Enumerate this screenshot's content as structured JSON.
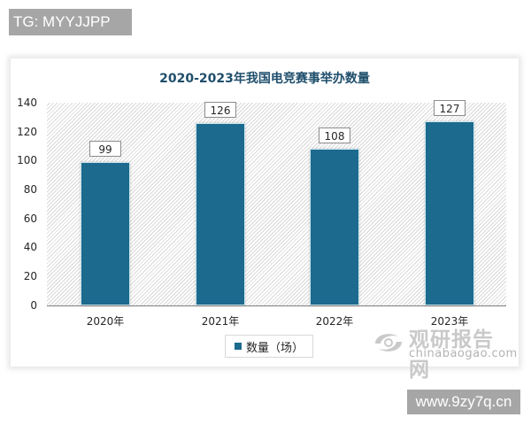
{
  "watermarks": {
    "top_left": "TG: MYYJJPP",
    "bottom_right": "www.9zy7q.cn"
  },
  "logo": {
    "name_cn": "观研报告网",
    "domain": "chinabaogao.com"
  },
  "chart_data": {
    "type": "bar",
    "title": "2020-2023年我国电竞赛事举办数量",
    "categories": [
      "2020年",
      "2021年",
      "2022年",
      "2023年"
    ],
    "series": [
      {
        "name": "数量（场）",
        "values": [
          99,
          126,
          108,
          127
        ],
        "color": "#1c6a8e"
      }
    ],
    "xlabel": "",
    "ylabel": "",
    "ylim": [
      0,
      140
    ],
    "yticks": [
      0,
      20,
      40,
      60,
      80,
      100,
      120,
      140
    ],
    "grid": false,
    "legend_position": "bottom",
    "data_labels": true
  }
}
